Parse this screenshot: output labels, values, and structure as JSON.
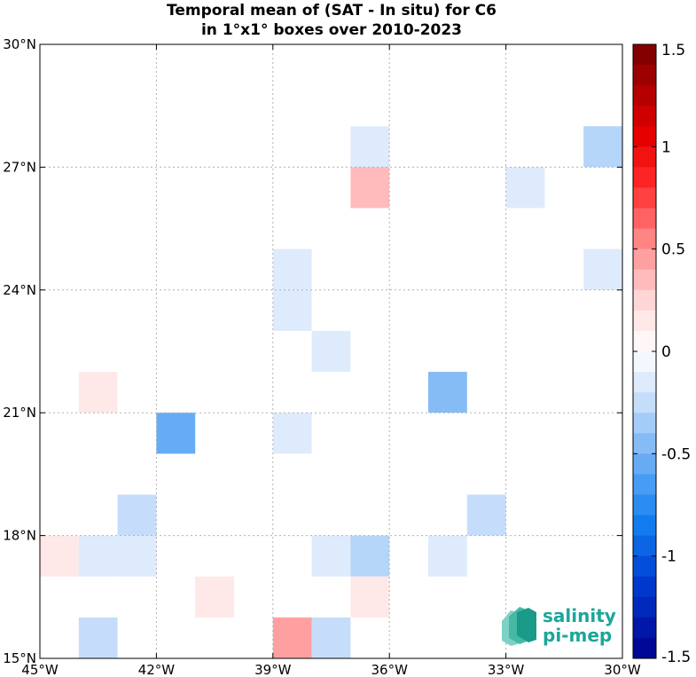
{
  "chart_data": {
    "type": "heatmap",
    "title": [
      "Temporal mean of (SAT - In situ) for C6",
      "in 1°x1° boxes over 2010-2023"
    ],
    "xlim": [
      -45,
      -30
    ],
    "ylim": [
      15,
      30
    ],
    "xticks": [
      -45,
      -42,
      -39,
      -36,
      -33,
      -30
    ],
    "xtick_labels": [
      "45°W",
      "42°W",
      "39°W",
      "36°W",
      "33°W",
      "30°W"
    ],
    "yticks": [
      15,
      18,
      21,
      24,
      27,
      30
    ],
    "ytick_labels": [
      "15°N",
      "18°N",
      "21°N",
      "24°N",
      "27°N",
      "30°N"
    ],
    "grid": true,
    "colorbar": {
      "range": [
        -1.5,
        1.5
      ],
      "levels": 30,
      "ticks": [
        1.5,
        1,
        0.5,
        0,
        -0.5,
        -1,
        -1.5
      ],
      "tick_labels": [
        "1.5",
        "1",
        "0.5",
        "0",
        "-0.5",
        "-1",
        "-1.5"
      ]
    },
    "cells": [
      {
        "lon": -37,
        "lat": 27,
        "value": -0.15
      },
      {
        "lon": -31,
        "lat": 27,
        "value": -0.3
      },
      {
        "lon": -37,
        "lat": 26,
        "value": 0.35
      },
      {
        "lon": -33,
        "lat": 26,
        "value": -0.15
      },
      {
        "lon": -39,
        "lat": 24,
        "value": -0.15
      },
      {
        "lon": -31,
        "lat": 24,
        "value": -0.15
      },
      {
        "lon": -39,
        "lat": 23,
        "value": -0.15
      },
      {
        "lon": -38,
        "lat": 22,
        "value": -0.15
      },
      {
        "lon": -44,
        "lat": 21,
        "value": 0.15
      },
      {
        "lon": -35,
        "lat": 21,
        "value": -0.45
      },
      {
        "lon": -42,
        "lat": 20,
        "value": -0.55
      },
      {
        "lon": -39,
        "lat": 20,
        "value": -0.15
      },
      {
        "lon": -43,
        "lat": 18,
        "value": -0.25
      },
      {
        "lon": -34,
        "lat": 18,
        "value": -0.25
      },
      {
        "lon": -45,
        "lat": 17,
        "value": 0.15
      },
      {
        "lon": -44,
        "lat": 17,
        "value": -0.15
      },
      {
        "lon": -43,
        "lat": 17,
        "value": -0.15
      },
      {
        "lon": -38,
        "lat": 17,
        "value": -0.15
      },
      {
        "lon": -37,
        "lat": 17,
        "value": -0.3
      },
      {
        "lon": -35,
        "lat": 17,
        "value": -0.15
      },
      {
        "lon": -41,
        "lat": 16,
        "value": 0.15
      },
      {
        "lon": -37,
        "lat": 16,
        "value": 0.15
      },
      {
        "lon": -44,
        "lat": 15,
        "value": -0.25
      },
      {
        "lon": -39,
        "lat": 15,
        "value": 0.45
      },
      {
        "lon": -38,
        "lat": 15,
        "value": -0.25
      }
    ]
  },
  "logo": {
    "line1": "salinity",
    "line2": "pi-mep"
  }
}
